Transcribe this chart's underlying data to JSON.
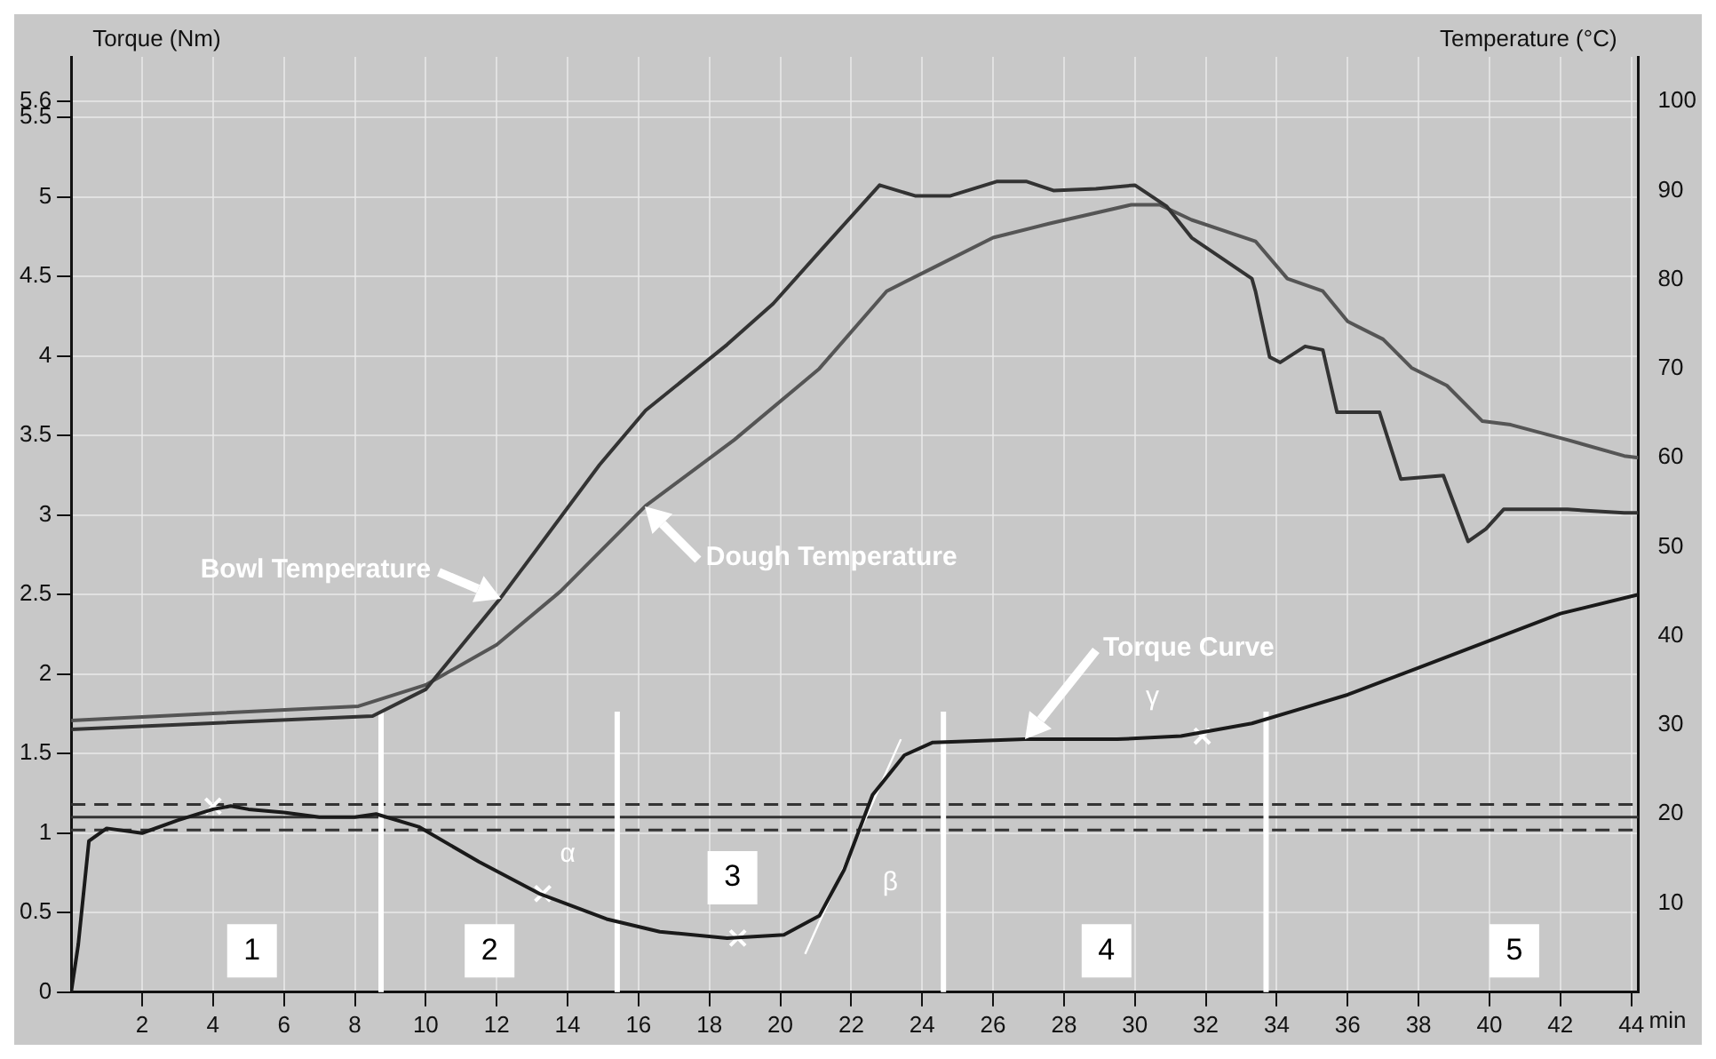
{
  "chart_data": {
    "type": "line",
    "xlabel": "min",
    "ylabel": "Torque (Nm)",
    "y2label": "Temperature (°C)",
    "xlim": [
      0,
      44.2
    ],
    "xticks": [
      2,
      4,
      6,
      8,
      10,
      12,
      14,
      16,
      18,
      20,
      22,
      24,
      26,
      28,
      30,
      32,
      34,
      36,
      38,
      40,
      42,
      44
    ],
    "ylim": [
      0,
      5.88
    ],
    "yticks": [
      0,
      0.5,
      1,
      1.5,
      2,
      2.5,
      3,
      3.5,
      4,
      4.5,
      5,
      5.5,
      5.6
    ],
    "y2lim": [
      0,
      105
    ],
    "y2ticks": [
      10,
      20,
      30,
      40,
      50,
      60,
      70,
      80,
      90,
      100
    ],
    "grid": true,
    "legend": false,
    "series": [
      {
        "name": "Torque Curve",
        "color": "#1a1a1a",
        "x": [
          0,
          0.2,
          0.5,
          1,
          2,
          3,
          4,
          4.5,
          5,
          6,
          7,
          8,
          8.6,
          9.8,
          11.5,
          13.2,
          15.1,
          16.6,
          18.5,
          20.1,
          21.1,
          21.8,
          22.6,
          23.5,
          24.3,
          26.9,
          29.5,
          31.3,
          33.3,
          34.8,
          36,
          38,
          40,
          42,
          44.2
        ],
        "values": [
          0,
          0.3,
          0.95,
          1.03,
          1.0,
          1.08,
          1.15,
          1.17,
          1.15,
          1.13,
          1.1,
          1.1,
          1.12,
          1.04,
          0.82,
          0.62,
          0.46,
          0.38,
          0.34,
          0.36,
          0.48,
          0.77,
          1.24,
          1.49,
          1.57,
          1.59,
          1.59,
          1.61,
          1.69,
          1.79,
          1.87,
          2.04,
          2.21,
          2.38,
          2.5
        ]
      },
      {
        "name": "Bowl Temperature",
        "color": "#333333",
        "axis": "y2",
        "x": [
          0,
          4,
          8.5,
          10,
          12.1,
          14.9,
          16.2,
          18.5,
          19.8,
          21.1,
          22.8,
          23.8,
          24.8,
          26.1,
          26.95,
          27.7,
          28.9,
          30,
          30.9,
          31.6,
          33.3,
          33.4,
          33.8,
          34.1,
          34.8,
          35.3,
          35.7,
          36.9,
          37.5,
          38.7,
          39.4,
          39.9,
          40.4,
          42.2,
          43.8,
          44.2
        ],
        "values": [
          29.5,
          30.2,
          31,
          34,
          44.2,
          59.2,
          65.3,
          72.7,
          77.3,
          83.1,
          90.6,
          89.4,
          89.4,
          91,
          91,
          90,
          90.2,
          90.6,
          88.2,
          84.7,
          80.1,
          78.7,
          71.3,
          70.7,
          72.5,
          72.1,
          65.1,
          65.1,
          57.6,
          58,
          50.6,
          52,
          54.2,
          54.2,
          53.8,
          53.8
        ]
      },
      {
        "name": "Dough Temperature",
        "color": "#555555",
        "axis": "y2",
        "x": [
          0,
          4,
          8.1,
          10,
          12,
          13.8,
          16.2,
          18.7,
          21.1,
          23,
          24.3,
          26,
          27.6,
          29.9,
          30.7,
          31.6,
          33.4,
          34.3,
          35.3,
          36,
          37,
          37.8,
          38.8,
          39.8,
          40.6,
          42.2,
          43.8,
          44.2
        ],
        "values": [
          30.5,
          31.3,
          32.1,
          34.5,
          39,
          45,
          54.6,
          62,
          70,
          78.7,
          81.3,
          84.7,
          86.3,
          88.4,
          88.4,
          86.7,
          84.3,
          80.1,
          78.7,
          75.3,
          73.3,
          70.1,
          68.1,
          64.1,
          63.7,
          62,
          60.2,
          60
        ]
      },
      {
        "type": "line",
        "color": "#ffffff",
        "x": [
          20.7,
          23.4
        ],
        "values": [
          0.24,
          1.59
        ]
      },
      {
        "type": "scatter",
        "marker": "cross",
        "color": "#ffffff",
        "x": [
          4,
          13.3,
          18.8,
          31.9
        ],
        "values": [
          1.17,
          0.62,
          0.34,
          1.61
        ]
      }
    ],
    "ref_lines": [
      {
        "axis": "y",
        "value": 1.1,
        "color": "#333333",
        "line_style": "solid"
      },
      {
        "axis": "y",
        "value": 1.02,
        "color": "#333333",
        "line_style": "dashed"
      },
      {
        "axis": "y",
        "value": 1.18,
        "color": "#333333",
        "line_style": "dashed"
      },
      {
        "axis": "x",
        "value": 8.74,
        "color": "#ffffff"
      },
      {
        "axis": "x",
        "value": 15.4,
        "color": "#ffffff"
      },
      {
        "axis": "x",
        "value": 24.6,
        "color": "#ffffff"
      },
      {
        "axis": "x",
        "value": 33.7,
        "color": "#ffffff"
      }
    ],
    "annotations": [
      {
        "text": "1",
        "x": 5.1,
        "y": 0.26
      },
      {
        "text": "2",
        "x": 11.8,
        "y": 0.26
      },
      {
        "text": "3",
        "x": 18.65,
        "y": 0.72
      },
      {
        "text": "4",
        "x": 29.2,
        "y": 0.26
      },
      {
        "text": "5",
        "x": 40.7,
        "y": 0.26
      },
      {
        "text": "α",
        "x": 13.3,
        "y": 0.62
      },
      {
        "text": "β",
        "x": 21.6,
        "y": 0.69
      },
      {
        "text": "γ",
        "x": 31.9,
        "y": 1.61
      }
    ]
  }
}
